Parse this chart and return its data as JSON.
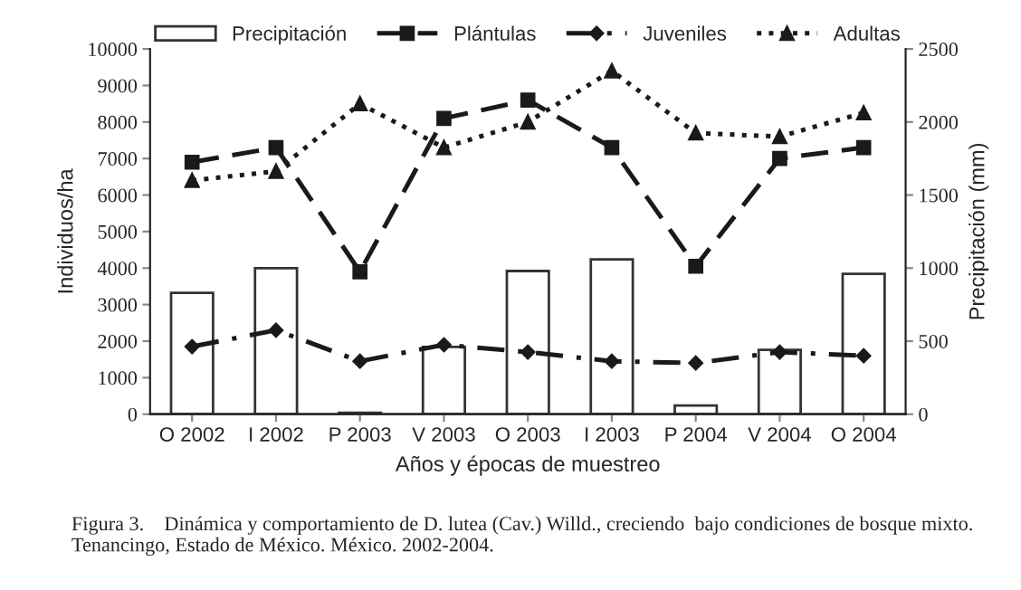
{
  "chart_data": {
    "type": "line",
    "categories": [
      "O 2002",
      "I 2002",
      "P 2003",
      "V 2003",
      "O 2003",
      "I 2003",
      "P 2004",
      "V 2004",
      "O 2004"
    ],
    "xlabel": "Años y épocas de muestreo",
    "ylabel": "Individuos/ha",
    "y2label": "Precipitación (mm)",
    "series": [
      {
        "name": "Precipitación",
        "type": "bar",
        "axis": "y2",
        "color": "#ffffff",
        "values": [
          830,
          1000,
          10,
          460,
          980,
          1060,
          60,
          440,
          960
        ]
      },
      {
        "name": "Plántulas",
        "color": "#1a1a1a",
        "marker": "square",
        "line_style": "dashed",
        "values": [
          6900,
          7300,
          3900,
          8100,
          8600,
          7300,
          4050,
          7000,
          7300
        ]
      },
      {
        "name": "Juveniles",
        "color": "#1a1a1a",
        "marker": "diamond",
        "line_style": "dashdot",
        "values": [
          1850,
          2300,
          1450,
          1900,
          1700,
          1450,
          1400,
          1700,
          1600
        ]
      },
      {
        "name": "Adultas",
        "color": "#1a1a1a",
        "marker": "triangle",
        "line_style": "dotted",
        "values": [
          6400,
          6650,
          8500,
          7300,
          8000,
          9400,
          7700,
          7600,
          8250
        ]
      }
    ],
    "ylim": [
      0,
      10000
    ],
    "yticks": [
      0,
      1000,
      2000,
      3000,
      4000,
      5000,
      6000,
      7000,
      8000,
      9000,
      10000
    ],
    "y2lim": [
      0,
      2500
    ],
    "y2ticks": [
      0,
      500,
      1000,
      1500,
      2000,
      2500
    ],
    "grid": false,
    "legend": "top",
    "annotations": [
      "Figura 3.    Dinámica y comportamiento de D. lutea (Cav.) Willd., creciendo  bajo condiciones de bosque mixto. Tenancingo, Estado de México. México. 2002-2004."
    ]
  }
}
